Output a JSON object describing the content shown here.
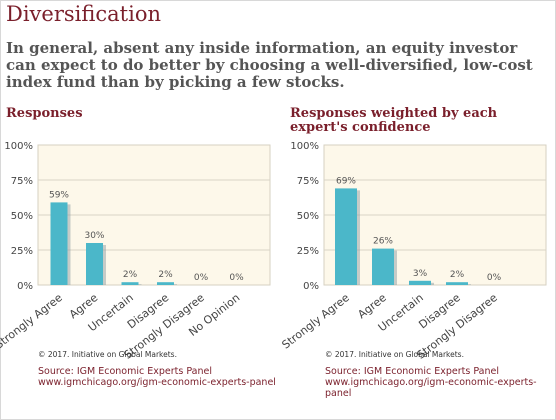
{
  "title": "Diversification",
  "question": "In general, absent any inside information, an equity investor can expect to do better by choosing a well-diversified, low-cost index fund than by picking a few stocks.",
  "left_panel": {
    "heading": "Responses",
    "copyright": "© 2017. Initiative on Global Markets.",
    "source_line": "Source: IGM Economic Experts Panel",
    "source_url": "www.igmchicago.org/igm-economic-experts-panel"
  },
  "right_panel": {
    "heading": "Responses weighted by each expert's confidence",
    "copyright": "© 2017. Initiative on Global Markets.",
    "source_line": "Source: IGM Economic Experts Panel",
    "source_url": "www.igmchicago.org/igm-economic-experts-panel"
  },
  "colors": {
    "title": "#7a1f2b",
    "bar": "#4bb7c9",
    "plot_background": "#fdf8ea"
  },
  "chart_data": [
    {
      "type": "bar",
      "title": "Responses",
      "categories": [
        "Strongly Agree",
        "Agree",
        "Uncertain",
        "Disagree",
        "Strongly Disagree",
        "No Opinion"
      ],
      "values": [
        59,
        30,
        2,
        2,
        0,
        0
      ],
      "value_labels": [
        "59%",
        "30%",
        "2%",
        "2%",
        "0%",
        "0%"
      ],
      "yticks": [
        "0%",
        "25%",
        "50%",
        "75%",
        "100%"
      ],
      "ylim": [
        0,
        100
      ],
      "grid": true
    },
    {
      "type": "bar",
      "title": "Responses weighted by each expert's confidence",
      "categories": [
        "Strongly Agree",
        "Agree",
        "Uncertain",
        "Disagree",
        "Strongly Disagree"
      ],
      "values": [
        69,
        26,
        3,
        2,
        0
      ],
      "value_labels": [
        "69%",
        "26%",
        "3%",
        "2%",
        "0%"
      ],
      "yticks": [
        "0%",
        "25%",
        "50%",
        "75%",
        "100%"
      ],
      "ylim": [
        0,
        100
      ],
      "grid": true
    }
  ]
}
